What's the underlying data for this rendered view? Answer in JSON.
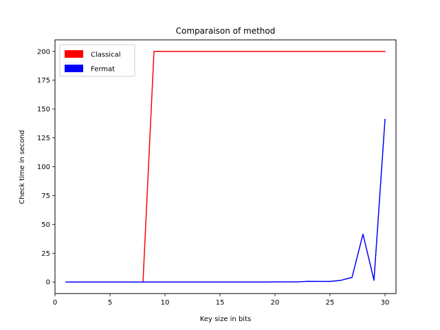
{
  "chart_data": {
    "type": "line",
    "title": "Comparaison of method",
    "xlabel": "Key size in bits",
    "ylabel": "Check time in second",
    "xlim": [
      0.0,
      31.0
    ],
    "ylim": [
      -10.0,
      210.0
    ],
    "xticks": [
      0,
      5,
      10,
      15,
      20,
      25,
      30
    ],
    "yticks": [
      0,
      25,
      50,
      75,
      100,
      125,
      150,
      175,
      200
    ],
    "grid": false,
    "legend_position": "upper-left",
    "series": [
      {
        "name": "Classical",
        "color": "#ff0000",
        "x": [
          1,
          2,
          3,
          4,
          5,
          6,
          7,
          8,
          9,
          10,
          11,
          12,
          13,
          14,
          15,
          16,
          17,
          18,
          19,
          20,
          21,
          22,
          23,
          24,
          25,
          26,
          27,
          28,
          29,
          30
        ],
        "y": [
          0,
          0,
          0,
          0,
          0,
          0,
          0,
          0,
          200,
          200,
          200,
          200,
          200,
          200,
          200,
          200,
          200,
          200,
          200,
          200,
          200,
          200,
          200,
          200,
          200,
          200,
          200,
          200,
          200,
          200
        ]
      },
      {
        "name": "Fermat",
        "color": "#0000ff",
        "x": [
          1,
          2,
          3,
          4,
          5,
          6,
          7,
          8,
          9,
          10,
          11,
          12,
          13,
          14,
          15,
          16,
          17,
          18,
          19,
          20,
          21,
          22,
          23,
          24,
          25,
          26,
          27,
          28,
          29,
          30
        ],
        "y": [
          0,
          0,
          0,
          0,
          0,
          0,
          0,
          0,
          0,
          0,
          0,
          0,
          0,
          0,
          0,
          0,
          0,
          0,
          0,
          0.1,
          0.1,
          0.1,
          0.6,
          0.5,
          0.5,
          1.5,
          4,
          41.5,
          1.5,
          141
        ]
      }
    ]
  }
}
